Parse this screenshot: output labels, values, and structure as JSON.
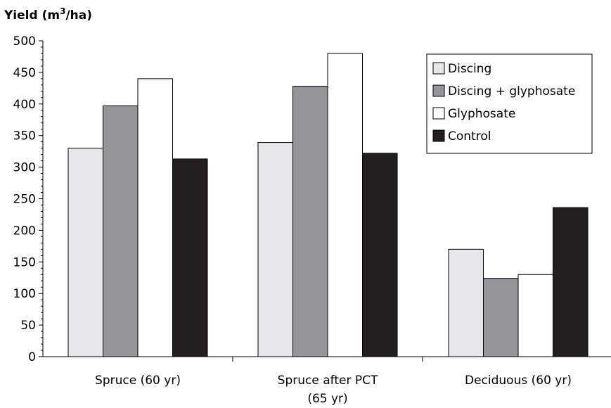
{
  "chart_data": {
    "type": "bar",
    "title": "",
    "ylabel_main": "Yield (m",
    "ylabel_sup": "3",
    "ylabel_tail": "/ha)",
    "xlabel": "",
    "ylim": [
      0,
      500
    ],
    "yticks": [
      "0",
      "50",
      "100",
      "150",
      "200",
      "250",
      "300",
      "350",
      "400",
      "450",
      "500"
    ],
    "categories": [
      {
        "line1": "Spruce (60 yr)",
        "line2": ""
      },
      {
        "line1": "Spruce after PCT",
        "line2": "(65 yr)"
      },
      {
        "line1": "Deciduous (60 yr)",
        "line2": ""
      }
    ],
    "series": [
      {
        "name": "Discing",
        "color": "#e6e7e8",
        "values": [
          330,
          339,
          170
        ]
      },
      {
        "name": "Discing + glyphosate",
        "color": "#939598",
        "values": [
          397,
          428,
          124
        ]
      },
      {
        "name": "Glyphosate",
        "color": "#ffffff",
        "values": [
          440,
          480,
          130
        ]
      },
      {
        "name": "Control",
        "color": "#231f20",
        "values": [
          313,
          322,
          236
        ]
      }
    ],
    "legend_position": "top-right",
    "grid": false
  }
}
